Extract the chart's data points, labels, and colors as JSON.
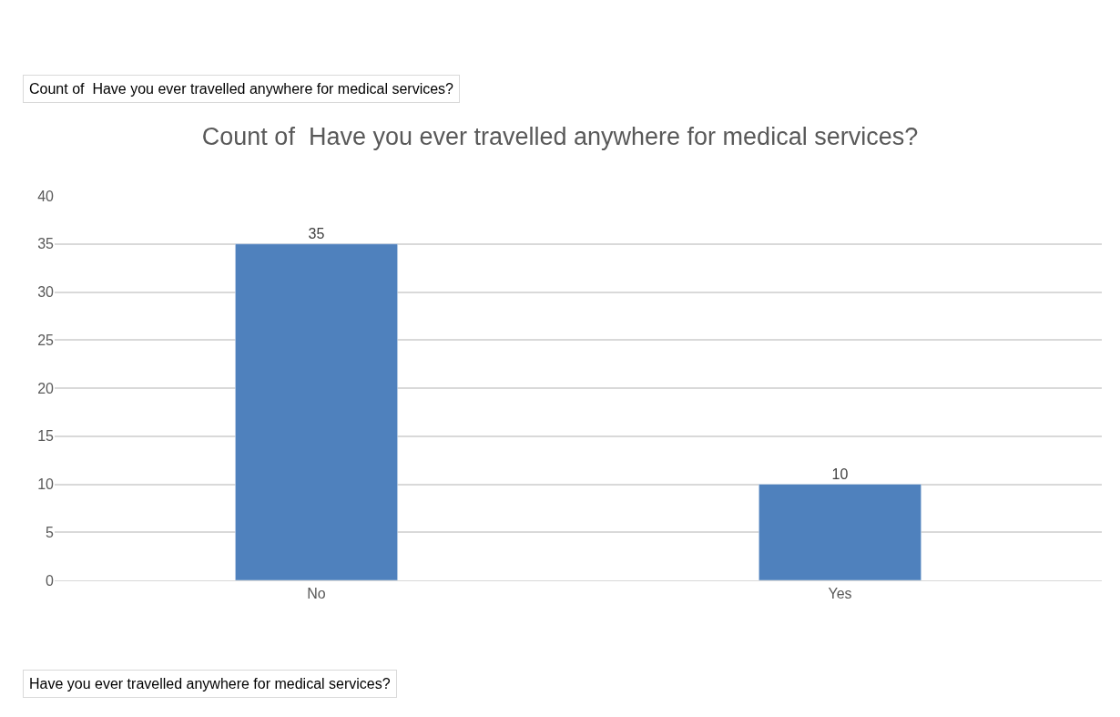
{
  "chart_data": {
    "type": "bar",
    "title": "Count of  Have you ever travelled anywhere for medical services?",
    "categories": [
      "No",
      "Yes"
    ],
    "values": [
      35,
      10
    ],
    "color": "#4f81bd",
    "ylim": [
      0,
      40
    ],
    "yticks": [
      0,
      5,
      10,
      15,
      20,
      25,
      30,
      35,
      40
    ],
    "grid": "y",
    "data_labels": true,
    "legend": false,
    "annotations": [
      "Count of  Have you ever travelled anywhere for medical services?",
      "Have you ever travelled anywhere for medical services?"
    ]
  }
}
